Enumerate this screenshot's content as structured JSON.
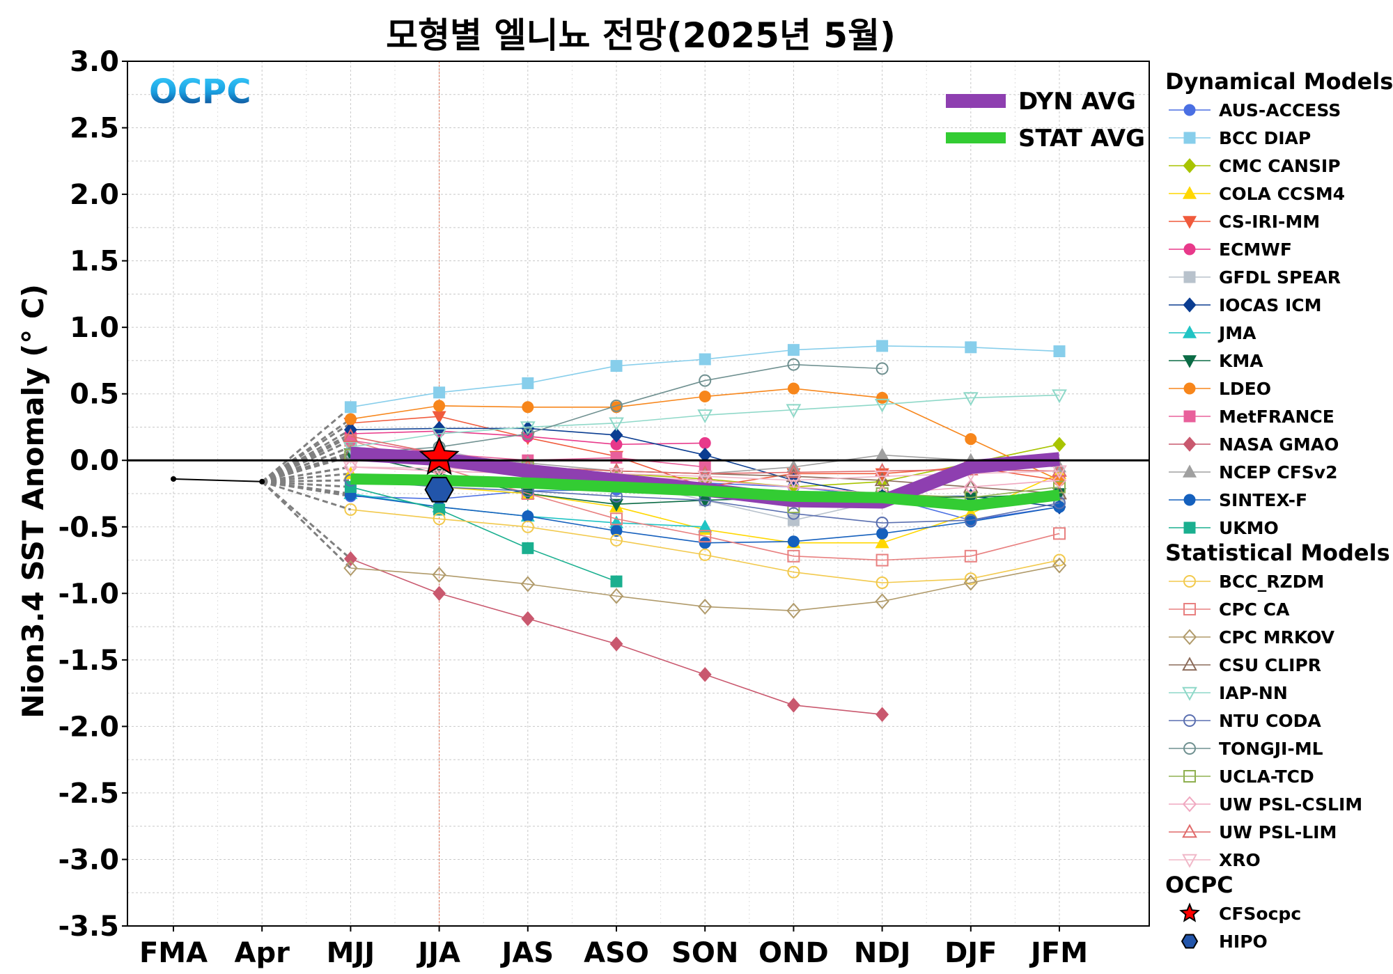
{
  "chart_data": {
    "type": "line",
    "title": "모형별 엘니뇨 전망(2025년 5월)",
    "ylabel": "Nion3.4 SST Anomaly (° C)",
    "xlabel": "",
    "logo": "OCPC",
    "categories": [
      "FMA",
      "Apr",
      "MJJ",
      "JJA",
      "JAS",
      "ASO",
      "SON",
      "OND",
      "NDJ",
      "DJF",
      "JFM"
    ],
    "ylim": [
      -3.5,
      3.0
    ],
    "yticks": [
      "3.0",
      "2.5",
      "2.0",
      "1.5",
      "1.0",
      "0.5",
      "0.0",
      "-0.5",
      "-1.0",
      "-1.5",
      "-2.0",
      "-2.5",
      "-3.0",
      "-3.5"
    ],
    "grid": true,
    "observed": {
      "x": [
        "FMA",
        "Apr"
      ],
      "values": [
        -0.14,
        -0.16
      ]
    },
    "averages": [
      {
        "name": "DYN AVG",
        "color": "#8e3fb0",
        "values": [
          null,
          null,
          0.05,
          0.01,
          -0.08,
          -0.15,
          -0.22,
          -0.3,
          -0.31,
          -0.05,
          0.01
        ]
      },
      {
        "name": "STAT AVG",
        "color": "#33cc33",
        "values": [
          null,
          null,
          -0.14,
          -0.15,
          -0.17,
          -0.2,
          -0.23,
          -0.27,
          -0.28,
          -0.34,
          -0.26
        ]
      }
    ],
    "legend_groups": [
      {
        "heading": "Dynamical Models",
        "series": [
          {
            "name": "AUS-ACCESS",
            "color": "#4a6fe3",
            "marker": "circle",
            "filled": true,
            "values": [
              null,
              null,
              -0.27,
              -0.29,
              -0.23,
              -0.22,
              -0.17,
              -0.2,
              -0.27,
              -0.45,
              -0.35
            ]
          },
          {
            "name": "BCC DIAP",
            "color": "#87ceeb",
            "marker": "square",
            "filled": true,
            "values": [
              null,
              null,
              0.4,
              0.51,
              0.58,
              0.71,
              0.76,
              0.83,
              0.86,
              0.85,
              0.82
            ]
          },
          {
            "name": "CMC CANSIP",
            "color": "#a8c400",
            "marker": "diamond",
            "filled": true,
            "values": [
              null,
              null,
              0.06,
              0.03,
              -0.05,
              -0.1,
              -0.14,
              -0.2,
              -0.16,
              -0.02,
              0.12
            ]
          },
          {
            "name": "COLA CCSM4",
            "color": "#ffd700",
            "marker": "triangle-up",
            "filled": true,
            "values": [
              null,
              null,
              -0.1,
              -0.2,
              -0.25,
              -0.35,
              -0.52,
              -0.62,
              -0.62,
              -0.4,
              -0.1
            ]
          },
          {
            "name": "CS-IRI-MM",
            "color": "#f05a3c",
            "marker": "triangle-down",
            "filled": true,
            "values": [
              null,
              null,
              0.28,
              0.33,
              0.17,
              0.03,
              -0.2,
              -0.1,
              -0.1,
              -0.05,
              -0.15
            ]
          },
          {
            "name": "ECMWF",
            "color": "#e8398a",
            "marker": "circle",
            "filled": true,
            "values": [
              null,
              null,
              0.2,
              0.22,
              0.18,
              0.12,
              0.13,
              null,
              null,
              null,
              null
            ]
          },
          {
            "name": "GFDL SPEAR",
            "color": "#b8c2cc",
            "marker": "square",
            "filled": true,
            "values": [
              null,
              null,
              0.03,
              0.08,
              -0.06,
              -0.15,
              -0.3,
              -0.45,
              -0.3,
              -0.3,
              -0.3
            ]
          },
          {
            "name": "IOCAS ICM",
            "color": "#0b3d91",
            "marker": "diamond",
            "filled": true,
            "values": [
              null,
              null,
              0.23,
              0.24,
              0.24,
              0.19,
              0.04,
              -0.15,
              -0.27,
              -0.27,
              -0.35
            ]
          },
          {
            "name": "JMA",
            "color": "#20c4c4",
            "marker": "triangle-up",
            "filled": true,
            "values": [
              null,
              null,
              -0.25,
              -0.35,
              -0.42,
              -0.47,
              -0.5,
              null,
              null,
              null,
              null
            ]
          },
          {
            "name": "KMA",
            "color": "#0b6b45",
            "marker": "triangle-down",
            "filled": true,
            "values": [
              null,
              null,
              0.05,
              -0.1,
              -0.25,
              -0.33,
              -0.3,
              -0.28,
              -0.27,
              -0.28,
              -0.25
            ]
          },
          {
            "name": "LDEO",
            "color": "#f7861b",
            "marker": "circle",
            "filled": true,
            "values": [
              null,
              null,
              0.31,
              0.41,
              0.4,
              0.4,
              0.48,
              0.54,
              0.47,
              0.16,
              -0.15
            ]
          },
          {
            "name": "MetFRANCE",
            "color": "#e8609b",
            "marker": "square",
            "filled": true,
            "values": [
              null,
              null,
              0.15,
              0.05,
              0.0,
              0.02,
              -0.05,
              null,
              null,
              null,
              null
            ]
          },
          {
            "name": "NASA GMAO",
            "color": "#c9586e",
            "marker": "diamond",
            "filled": true,
            "values": [
              null,
              null,
              -0.74,
              -1.0,
              -1.19,
              -1.38,
              -1.61,
              -1.84,
              -1.91,
              null,
              null
            ]
          },
          {
            "name": "NCEP CFSv2",
            "color": "#a0a0a0",
            "marker": "triangle-up",
            "filled": true,
            "values": [
              null,
              null,
              0.1,
              0.05,
              -0.02,
              -0.08,
              -0.1,
              -0.05,
              0.04,
              0.0,
              -0.05
            ]
          },
          {
            "name": "SINTEX-F",
            "color": "#1560bd",
            "marker": "circle",
            "filled": true,
            "values": [
              null,
              null,
              -0.26,
              -0.35,
              -0.42,
              -0.53,
              -0.62,
              -0.61,
              -0.55,
              -0.46,
              -0.35
            ]
          },
          {
            "name": "UKMO",
            "color": "#1aaf8f",
            "marker": "square",
            "filled": true,
            "values": [
              null,
              null,
              -0.2,
              -0.37,
              -0.66,
              -0.91,
              null,
              null,
              null,
              null,
              null
            ]
          }
        ]
      },
      {
        "heading": "Statistical Models",
        "series": [
          {
            "name": "BCC_RZDM",
            "color": "#f2c94c",
            "marker": "circle",
            "filled": false,
            "values": [
              null,
              null,
              -0.37,
              -0.44,
              -0.5,
              -0.6,
              -0.71,
              -0.84,
              -0.92,
              -0.89,
              -0.75
            ]
          },
          {
            "name": "CPC CA",
            "color": "#e88080",
            "marker": "square",
            "filled": false,
            "values": [
              null,
              null,
              0.15,
              -0.05,
              -0.25,
              -0.44,
              -0.57,
              -0.72,
              -0.75,
              -0.72,
              -0.55
            ]
          },
          {
            "name": "CPC MRKOV",
            "color": "#b09a6a",
            "marker": "diamond",
            "filled": false,
            "values": [
              null,
              null,
              -0.81,
              -0.86,
              -0.93,
              -1.02,
              -1.1,
              -1.13,
              -1.06,
              -0.92,
              -0.79
            ]
          },
          {
            "name": "CSU CLIPR",
            "color": "#8b6b5a",
            "marker": "triangle-up",
            "filled": false,
            "values": [
              null,
              null,
              0.05,
              0.0,
              -0.05,
              -0.08,
              -0.1,
              -0.12,
              -0.15,
              -0.2,
              -0.25
            ]
          },
          {
            "name": "IAP-NN",
            "color": "#8ed8c8",
            "marker": "triangle-down",
            "filled": false,
            "values": [
              null,
              null,
              0.1,
              0.2,
              0.25,
              0.28,
              0.34,
              0.38,
              0.42,
              0.47,
              0.49
            ]
          },
          {
            "name": "NTU CODA",
            "color": "#5a6fb0",
            "marker": "circle",
            "filled": false,
            "values": [
              null,
              null,
              -0.15,
              -0.2,
              -0.23,
              -0.27,
              -0.3,
              -0.4,
              -0.47,
              -0.45,
              -0.32
            ]
          },
          {
            "name": "TONGJI-ML",
            "color": "#6f9090",
            "marker": "circle",
            "filled": false,
            "values": [
              null,
              null,
              0.05,
              0.1,
              0.2,
              0.41,
              0.6,
              0.72,
              0.69,
              null,
              null
            ]
          },
          {
            "name": "UCLA-TCD",
            "color": "#8fb050",
            "marker": "square",
            "filled": false,
            "values": [
              null,
              null,
              0.04,
              0.0,
              -0.05,
              -0.13,
              -0.2,
              -0.35,
              -0.25,
              -0.28,
              -0.2
            ]
          },
          {
            "name": "UW PSL-CSLIM",
            "color": "#f0a8c0",
            "marker": "diamond",
            "filled": false,
            "values": [
              null,
              null,
              -0.05,
              -0.08,
              -0.1,
              -0.12,
              -0.15,
              -0.2,
              -0.25,
              -0.2,
              -0.15
            ]
          },
          {
            "name": "UW PSL-LIM",
            "color": "#e06a6a",
            "marker": "triangle-up",
            "filled": false,
            "values": [
              null,
              null,
              0.18,
              0.05,
              -0.05,
              -0.08,
              -0.1,
              -0.09,
              -0.08,
              -0.07,
              -0.08
            ]
          },
          {
            "name": "XRO",
            "color": "#f0b8c8",
            "marker": "triangle-down",
            "filled": false,
            "values": [
              null,
              null,
              -0.05,
              -0.06,
              -0.08,
              -0.1,
              -0.12,
              -0.15,
              -0.12,
              -0.1,
              -0.08
            ]
          }
        ]
      },
      {
        "heading": "OCPC",
        "series": [
          {
            "name": "CFSocpc",
            "color": "#ff0000",
            "marker": "star",
            "filled": true,
            "values": [
              null,
              null,
              null,
              0.02,
              null,
              null,
              null,
              null,
              null,
              null,
              null
            ]
          },
          {
            "name": "HIPO",
            "color": "#2255aa",
            "marker": "hexagon",
            "filled": true,
            "values": [
              null,
              null,
              null,
              -0.22,
              null,
              null,
              null,
              null,
              null,
              null,
              null
            ]
          }
        ]
      }
    ]
  }
}
